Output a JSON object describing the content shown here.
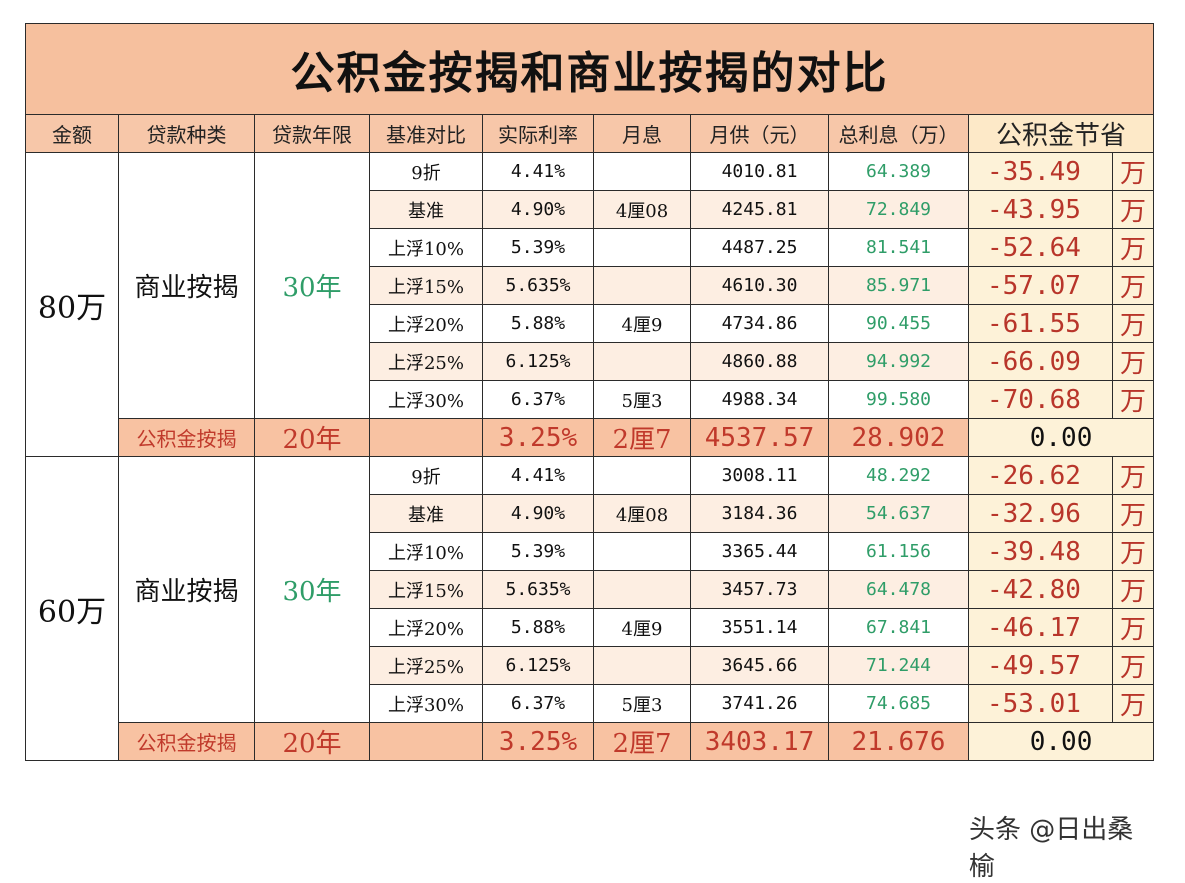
{
  "title": "公积金按揭和商业按揭的对比",
  "headers": [
    "金额",
    "贷款种类",
    "贷款年限",
    "基准对比",
    "实际利率",
    "月息",
    "月供（元）",
    "总利息（万）",
    "公积金节省"
  ],
  "unit": "万",
  "groups": [
    {
      "amount": "80万",
      "loan_type": "商业按揭",
      "years": "30年",
      "rows": [
        {
          "cmp": "9折",
          "rate": "4.41%",
          "mint": "",
          "pay": "4010.81",
          "tint": "64.389",
          "save": "-35.49"
        },
        {
          "cmp": "基准",
          "rate": "4.90%",
          "mint": "4厘08",
          "pay": "4245.81",
          "tint": "72.849",
          "save": "-43.95"
        },
        {
          "cmp": "上浮10%",
          "rate": "5.39%",
          "mint": "",
          "pay": "4487.25",
          "tint": "81.541",
          "save": "-52.64"
        },
        {
          "cmp": "上浮15%",
          "rate": "5.635%",
          "mint": "",
          "pay": "4610.30",
          "tint": "85.971",
          "save": "-57.07"
        },
        {
          "cmp": "上浮20%",
          "rate": "5.88%",
          "mint": "4厘9",
          "pay": "4734.86",
          "tint": "90.455",
          "save": "-61.55"
        },
        {
          "cmp": "上浮25%",
          "rate": "6.125%",
          "mint": "",
          "pay": "4860.88",
          "tint": "94.992",
          "save": "-66.09"
        },
        {
          "cmp": "上浮30%",
          "rate": "6.37%",
          "mint": "5厘3",
          "pay": "4988.34",
          "tint": "99.580",
          "save": "-70.68"
        }
      ],
      "gjj": {
        "type": "公积金按揭",
        "years": "20年",
        "rate": "3.25%",
        "mint": "2厘7",
        "pay": "4537.57",
        "tint": "28.902",
        "save": "0.00"
      }
    },
    {
      "amount": "60万",
      "loan_type": "商业按揭",
      "years": "30年",
      "rows": [
        {
          "cmp": "9折",
          "rate": "4.41%",
          "mint": "",
          "pay": "3008.11",
          "tint": "48.292",
          "save": "-26.62"
        },
        {
          "cmp": "基准",
          "rate": "4.90%",
          "mint": "4厘08",
          "pay": "3184.36",
          "tint": "54.637",
          "save": "-32.96"
        },
        {
          "cmp": "上浮10%",
          "rate": "5.39%",
          "mint": "",
          "pay": "3365.44",
          "tint": "61.156",
          "save": "-39.48"
        },
        {
          "cmp": "上浮15%",
          "rate": "5.635%",
          "mint": "",
          "pay": "3457.73",
          "tint": "64.478",
          "save": "-42.80"
        },
        {
          "cmp": "上浮20%",
          "rate": "5.88%",
          "mint": "4厘9",
          "pay": "3551.14",
          "tint": "67.841",
          "save": "-46.17"
        },
        {
          "cmp": "上浮25%",
          "rate": "6.125%",
          "mint": "",
          "pay": "3645.66",
          "tint": "71.244",
          "save": "-49.57"
        },
        {
          "cmp": "上浮30%",
          "rate": "6.37%",
          "mint": "5厘3",
          "pay": "3741.26",
          "tint": "74.685",
          "save": "-53.01"
        }
      ],
      "gjj": {
        "type": "公积金按揭",
        "years": "20年",
        "rate": "3.25%",
        "mint": "2厘7",
        "pay": "3403.17",
        "tint": "21.676",
        "save": "0.00"
      }
    }
  ],
  "watermark": "头条 @日出桑榆"
}
